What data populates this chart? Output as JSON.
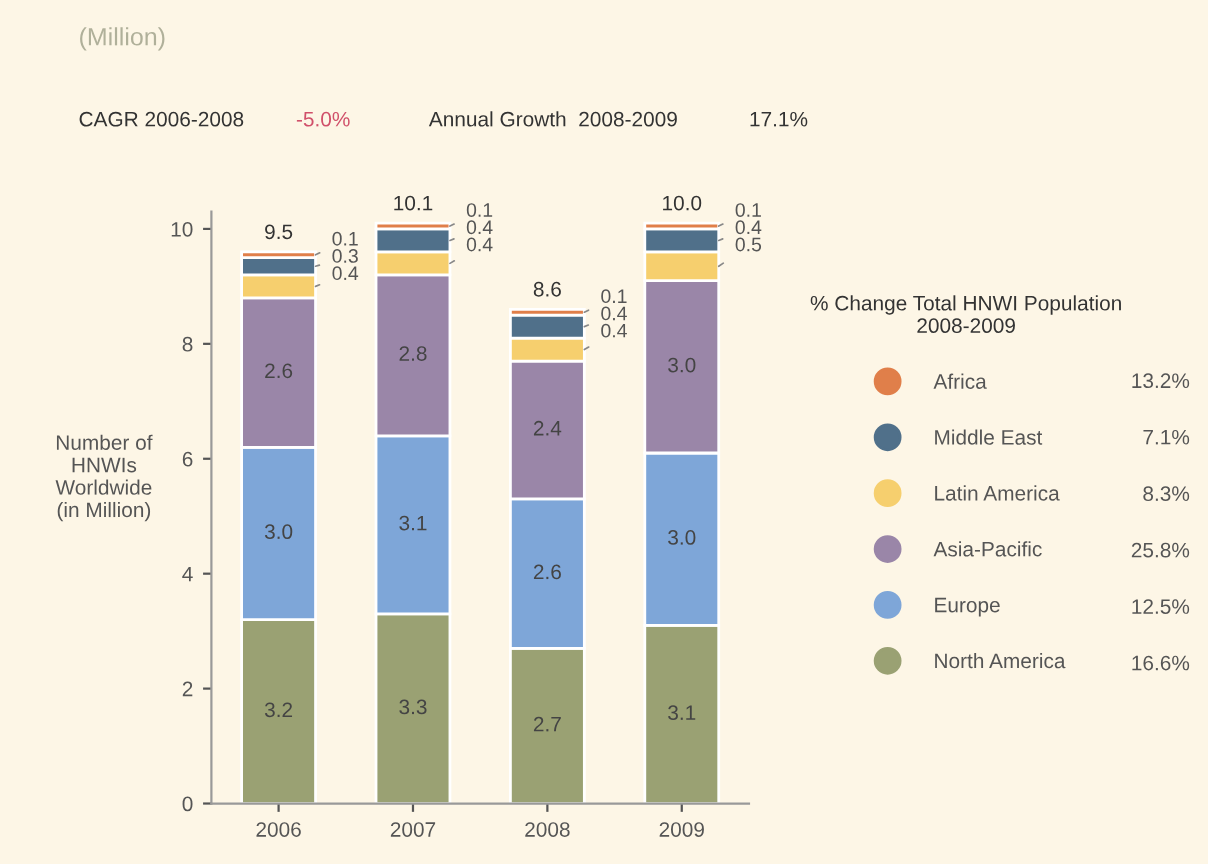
{
  "chart_data": {
    "type": "bar",
    "title": "(Million)",
    "ylabel": "Number of\nHNWIs\nWorldwide\n(in Million)",
    "legend_title": "% Change Total HNWI Population\n2008-2009",
    "categories": [
      "2006",
      "2007",
      "2008",
      "2009"
    ],
    "series": [
      {
        "name": "North America",
        "color": "#9aa173",
        "values": [
          3.2,
          3.3,
          2.7,
          3.1
        ],
        "value_labels": [
          "3.2",
          "3.3",
          "2.7",
          "3.1"
        ]
      },
      {
        "name": "Europe",
        "color": "#7ea6d8",
        "values": [
          3.0,
          3.1,
          2.6,
          3.0
        ],
        "value_labels": [
          "3.0",
          "3.1",
          "2.6",
          "3.0"
        ]
      },
      {
        "name": "Asia-Pacific",
        "color": "#9a86a8",
        "values": [
          2.6,
          2.8,
          2.4,
          3.0
        ],
        "value_labels": [
          "2.6",
          "2.8",
          "2.4",
          "3.0"
        ]
      },
      {
        "name": "Latin America",
        "color": "#f6cf6e",
        "values": [
          0.4,
          0.4,
          0.4,
          0.5
        ],
        "value_labels": [
          "0.4",
          "0.4",
          "0.4",
          "0.5"
        ]
      },
      {
        "name": "Middle East",
        "color": "#50708a",
        "values": [
          0.3,
          0.4,
          0.4,
          0.4
        ],
        "value_labels": [
          "0.3",
          "0.4",
          "0.4",
          "0.4"
        ]
      },
      {
        "name": "Africa",
        "color": "#e07f4a",
        "values": [
          0.1,
          0.1,
          0.1,
          0.1
        ],
        "value_labels": [
          "0.1",
          "0.1",
          "0.1",
          "0.1"
        ]
      }
    ],
    "stacked": true,
    "totals": [
      "9.5",
      "10.1",
      "8.6",
      "10.0"
    ],
    "ylim": [
      0,
      10.3
    ],
    "yticks": [
      0,
      2,
      4,
      6,
      8,
      10
    ],
    "grid": false,
    "legend": "right",
    "annotations": [
      "CAGR 2006-2008",
      "-5.0%",
      "Annual Growth  2008-2009",
      "17.1%",
      "16.6%",
      "12.5%",
      "25.8%",
      "8.3%",
      "7.1%",
      "13.2%"
    ]
  }
}
